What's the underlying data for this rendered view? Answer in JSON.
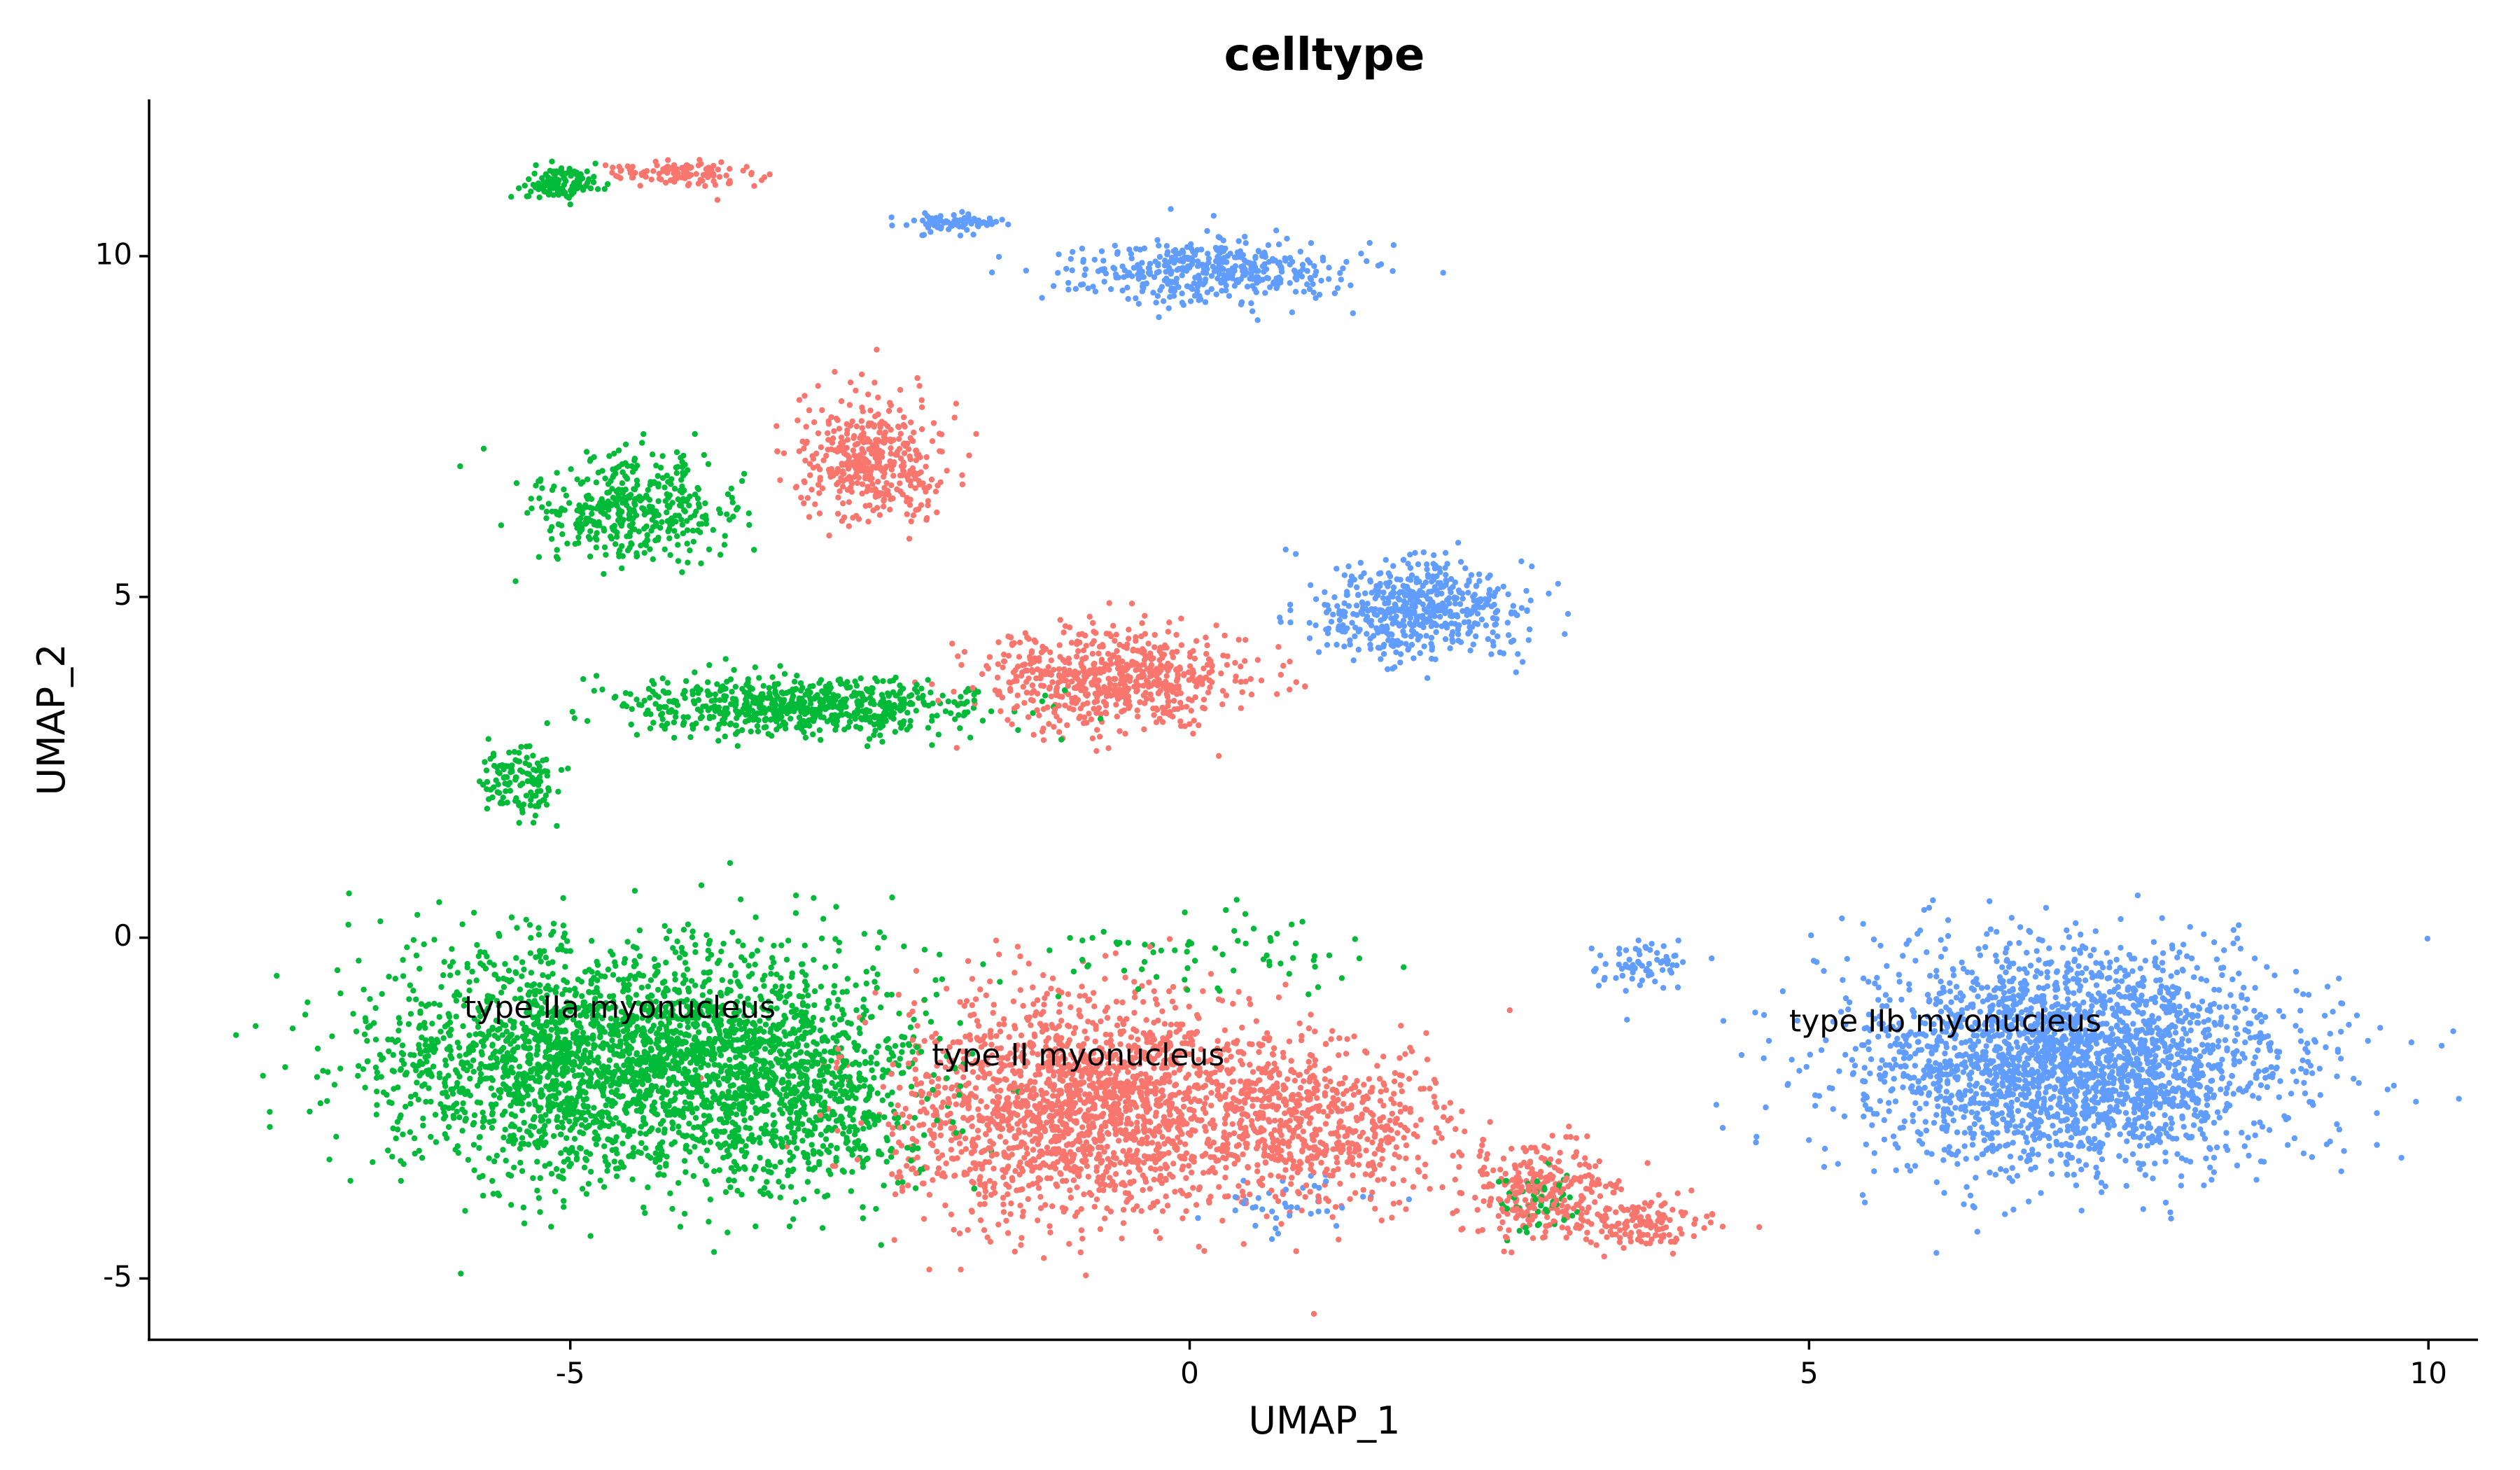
{
  "chart_data": {
    "type": "scatter",
    "title": "celltype",
    "xlabel": "UMAP_1",
    "ylabel": "UMAP_2",
    "xlim": [
      -8.4,
      10.4
    ],
    "ylim": [
      -5.9,
      12.3
    ],
    "xticks": [
      -5,
      0,
      5,
      10
    ],
    "xtick_labels": [
      "-5",
      "0",
      "5",
      "10"
    ],
    "yticks": [
      -5,
      0,
      5,
      10
    ],
    "ytick_labels": [
      "-5",
      "0",
      "5",
      "10"
    ],
    "grid": false,
    "legend": "none",
    "series": [
      {
        "name": "type IIa myonucleus",
        "color": "#00BA38",
        "clusters": [
          {
            "cx": -4.6,
            "cy": -1.8,
            "sx": 1.55,
            "sy": 1.35,
            "n": 2600
          },
          {
            "cx": -3.1,
            "cy": -2.3,
            "sx": 0.8,
            "sy": 1.2,
            "n": 600
          },
          {
            "cx": -3.2,
            "cy": 3.4,
            "sx": 1.1,
            "sy": 0.35,
            "n": 650
          },
          {
            "cx": -5.4,
            "cy": 2.3,
            "sx": 0.25,
            "sy": 0.5,
            "n": 120
          },
          {
            "cx": -4.5,
            "cy": 6.3,
            "sx": 0.7,
            "sy": 0.6,
            "n": 420
          },
          {
            "cx": -5.1,
            "cy": 11.1,
            "sx": 0.25,
            "sy": 0.2,
            "n": 110
          },
          {
            "cx": 0.0,
            "cy": -0.2,
            "sx": 1.2,
            "sy": 0.5,
            "n": 70
          },
          {
            "cx": 2.8,
            "cy": -3.8,
            "sx": 0.3,
            "sy": 0.4,
            "n": 50
          }
        ],
        "label": {
          "text": "type IIa myonucleus",
          "x": -4.6,
          "y": -1.05
        }
      },
      {
        "name": "type II myonucleus",
        "color": "#F8766D",
        "clusters": [
          {
            "cx": -0.9,
            "cy": -2.5,
            "sx": 1.2,
            "sy": 1.3,
            "n": 1900
          },
          {
            "cx": 1.0,
            "cy": -2.7,
            "sx": 0.9,
            "sy": 1.0,
            "n": 650
          },
          {
            "cx": 2.8,
            "cy": -3.7,
            "sx": 0.5,
            "sy": 0.55,
            "n": 280
          },
          {
            "cx": 3.6,
            "cy": -4.2,
            "sx": 0.45,
            "sy": 0.3,
            "n": 140
          },
          {
            "cx": -0.6,
            "cy": 3.8,
            "sx": 0.9,
            "sy": 0.6,
            "n": 650
          },
          {
            "cx": -2.6,
            "cy": 7.0,
            "sx": 0.5,
            "sy": 0.7,
            "n": 420
          },
          {
            "cx": -4.1,
            "cy": 11.2,
            "sx": 0.5,
            "sy": 0.15,
            "n": 120
          }
        ],
        "label": {
          "text": "type II myonucleus",
          "x": -0.9,
          "y": -1.75
        }
      },
      {
        "name": "type IIb myonucleus",
        "color": "#619CFF",
        "clusters": [
          {
            "cx": 7.1,
            "cy": -1.8,
            "sx": 1.45,
            "sy": 1.3,
            "n": 2500
          },
          {
            "cx": 3.6,
            "cy": -0.4,
            "sx": 0.3,
            "sy": 0.3,
            "n": 70
          },
          {
            "cx": 1.9,
            "cy": 4.8,
            "sx": 0.7,
            "sy": 0.55,
            "n": 520
          },
          {
            "cx": 0.2,
            "cy": 9.8,
            "sx": 0.9,
            "sy": 0.4,
            "n": 420
          },
          {
            "cx": -1.9,
            "cy": 10.5,
            "sx": 0.3,
            "sy": 0.12,
            "n": 80
          },
          {
            "cx": 0.8,
            "cy": -3.9,
            "sx": 0.6,
            "sy": 0.4,
            "n": 40
          }
        ],
        "label": {
          "text": "type IIb myonucleus",
          "x": 6.1,
          "y": -1.25
        }
      }
    ]
  }
}
